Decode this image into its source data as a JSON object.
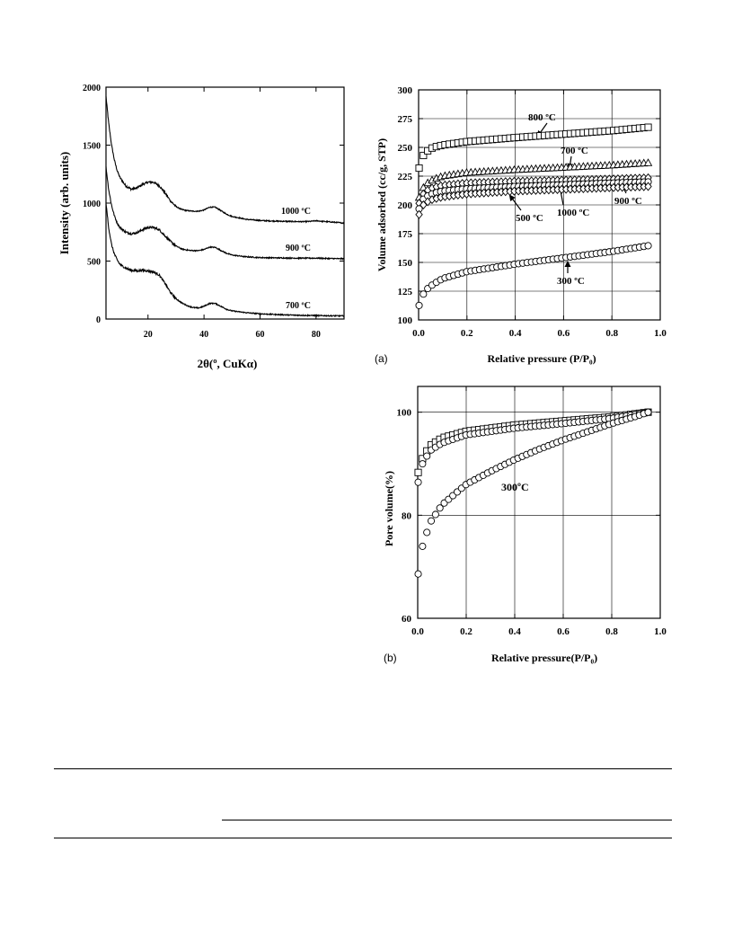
{
  "page": {
    "background": "#ffffff",
    "ink": "#000000"
  },
  "chart_data": [
    {
      "id": "xrd",
      "type": "line",
      "xlabel": "2θ(º, CuKα)",
      "ylabel": "Intensity (arb. units)",
      "xlim": [
        5,
        90
      ],
      "ylim": [
        0,
        2000
      ],
      "xticks": [
        20,
        40,
        60,
        80
      ],
      "yticks": [
        0,
        500,
        1000,
        1500,
        2000
      ],
      "grid": false,
      "legend": "none",
      "series": [
        {
          "name": "1000 ºC",
          "x": [
            5,
            6,
            7,
            8,
            9,
            10,
            12,
            14,
            16,
            18,
            20,
            22,
            24,
            26,
            28,
            30,
            32,
            34,
            36,
            38,
            40,
            42,
            44,
            46,
            48,
            50,
            55,
            60,
            65,
            70,
            75,
            78,
            80,
            82,
            85,
            88,
            90
          ],
          "y": [
            1920,
            1680,
            1500,
            1370,
            1280,
            1220,
            1150,
            1120,
            1130,
            1160,
            1180,
            1180,
            1150,
            1090,
            1020,
            970,
            945,
            935,
            930,
            930,
            940,
            965,
            965,
            935,
            905,
            885,
            860,
            850,
            845,
            842,
            840,
            842,
            848,
            843,
            838,
            832,
            828
          ]
        },
        {
          "name": "900 ºC",
          "x": [
            5,
            6,
            7,
            8,
            9,
            10,
            12,
            14,
            16,
            18,
            20,
            22,
            24,
            26,
            28,
            30,
            32,
            34,
            36,
            38,
            40,
            42,
            44,
            46,
            48,
            50,
            55,
            60,
            65,
            70,
            75,
            80,
            85,
            90
          ],
          "y": [
            1310,
            1110,
            980,
            890,
            830,
            790,
            750,
            735,
            745,
            770,
            790,
            790,
            770,
            720,
            670,
            630,
            605,
            595,
            590,
            590,
            600,
            620,
            618,
            592,
            568,
            552,
            537,
            530,
            528,
            526,
            525,
            525,
            522,
            520
          ]
        },
        {
          "name": "700 ºC",
          "x": [
            5,
            6,
            7,
            8,
            9,
            10,
            12,
            14,
            16,
            18,
            20,
            22,
            24,
            26,
            28,
            30,
            32,
            34,
            36,
            38,
            40,
            42,
            44,
            46,
            48,
            50,
            55,
            60,
            65,
            70,
            75,
            80,
            85,
            90
          ],
          "y": [
            1000,
            780,
            640,
            560,
            510,
            470,
            440,
            420,
            415,
            420,
            415,
            405,
            380,
            310,
            230,
            175,
            140,
            115,
            100,
            95,
            110,
            135,
            135,
            110,
            85,
            70,
            55,
            45,
            40,
            35,
            32,
            30,
            28,
            27
          ]
        }
      ],
      "annotations": [
        "1000 ºC",
        "900 ºC",
        "700 ºC"
      ]
    },
    {
      "id": "adsorption",
      "type": "scatter",
      "panel_label": "(a)",
      "xlabel": "Relative pressure (P/P₀)",
      "ylabel": "Volume adsorbed (cc/g, STP)",
      "xlim": [
        0,
        1.0
      ],
      "ylim": [
        100,
        300
      ],
      "xticks": [
        0.0,
        0.2,
        0.4,
        0.6,
        0.8,
        1.0
      ],
      "xtick_labels": [
        "0.0",
        "0.2",
        "0.4",
        "0.6",
        "0.8",
        "1.0"
      ],
      "yticks": [
        100,
        125,
        150,
        175,
        200,
        225,
        250,
        275,
        300
      ],
      "grid": true,
      "legend": "none",
      "series": [
        {
          "name": "800 ºC",
          "marker": "square",
          "anchors": [
            [
              0.0,
              230
            ],
            [
              0.01,
              240
            ],
            [
              0.03,
              246
            ],
            [
              0.06,
              250
            ],
            [
              0.1,
              252
            ],
            [
              0.2,
              255
            ],
            [
              0.4,
              258.5
            ],
            [
              0.6,
              261.5
            ],
            [
              0.8,
              264.5
            ],
            [
              0.95,
              267.5
            ]
          ]
        },
        {
          "name": "700 ºC",
          "marker": "triangle",
          "anchors": [
            [
              0.0,
              205
            ],
            [
              0.01,
              212
            ],
            [
              0.03,
              218
            ],
            [
              0.06,
              222
            ],
            [
              0.1,
              225
            ],
            [
              0.2,
              228
            ],
            [
              0.4,
              230.5
            ],
            [
              0.6,
              232.5
            ],
            [
              0.8,
              234.5
            ],
            [
              0.95,
              236.5
            ]
          ]
        },
        {
          "name": "900 ºC",
          "marker": "diamond",
          "anchors": [
            [
              0.0,
              200
            ],
            [
              0.01,
              207
            ],
            [
              0.03,
              212
            ],
            [
              0.06,
              215
            ],
            [
              0.1,
              217
            ],
            [
              0.2,
              219
            ],
            [
              0.4,
              220.5
            ],
            [
              0.6,
              221.5
            ],
            [
              0.8,
              222.5
            ],
            [
              0.95,
              223.5
            ]
          ]
        },
        {
          "name": "1000 ºC",
          "marker": "circle",
          "anchors": [
            [
              0.0,
              195
            ],
            [
              0.01,
              203
            ],
            [
              0.03,
              207
            ],
            [
              0.06,
              210
            ],
            [
              0.1,
              212
            ],
            [
              0.2,
              214
            ],
            [
              0.4,
              216
            ],
            [
              0.6,
              217.5
            ],
            [
              0.8,
              219
            ],
            [
              0.95,
              220
            ]
          ]
        },
        {
          "name": "500 ºC",
          "marker": "diamond",
          "anchors": [
            [
              0.0,
              190
            ],
            [
              0.01,
              198
            ],
            [
              0.03,
              202
            ],
            [
              0.06,
              205
            ],
            [
              0.1,
              207
            ],
            [
              0.2,
              209.5
            ],
            [
              0.4,
              212
            ],
            [
              0.6,
              213.5
            ],
            [
              0.8,
              215
            ],
            [
              0.95,
              216
            ]
          ]
        },
        {
          "name": "300 ºC",
          "marker": "circle",
          "anchors": [
            [
              0.0,
              111
            ],
            [
              0.01,
              119
            ],
            [
              0.03,
              126
            ],
            [
              0.06,
              131
            ],
            [
              0.1,
              136
            ],
            [
              0.2,
              142
            ],
            [
              0.4,
              148.5
            ],
            [
              0.6,
              154
            ],
            [
              0.8,
              159.5
            ],
            [
              0.95,
              164.5
            ]
          ]
        }
      ],
      "points_per_series": 54,
      "annotations": [
        "800 ºC",
        "700 ºC",
        "900 ºC",
        "500 ºC",
        "1000 ºC",
        "300 ºC"
      ]
    },
    {
      "id": "pore",
      "type": "scatter",
      "panel_label": "(b)",
      "xlabel": "Relative pressure(P/P₀)",
      "ylabel": "Pore volume(%)",
      "xlim": [
        0,
        1.0
      ],
      "ylim": [
        60,
        105
      ],
      "xticks": [
        0.0,
        0.2,
        0.4,
        0.6,
        0.8,
        1.0
      ],
      "xtick_labels": [
        "0.0",
        "0.2",
        "0.4",
        "0.6",
        "0.8",
        "1.0"
      ],
      "yticks": [
        60,
        80,
        100
      ],
      "grid": true,
      "legend": "none",
      "series": [
        {
          "name": "",
          "marker": "square",
          "anchors": [
            [
              0.0,
              88
            ],
            [
              0.02,
              91
            ],
            [
              0.05,
              93.5
            ],
            [
              0.1,
              95
            ],
            [
              0.2,
              96.3
            ],
            [
              0.4,
              97.5
            ],
            [
              0.6,
              98.3
            ],
            [
              0.8,
              99.1
            ],
            [
              0.95,
              100
            ]
          ]
        },
        {
          "name": "",
          "marker": "circle",
          "anchors": [
            [
              0.0,
              86
            ],
            [
              0.02,
              90
            ],
            [
              0.05,
              92.5
            ],
            [
              0.1,
              94
            ],
            [
              0.2,
              95.6
            ],
            [
              0.4,
              96.9
            ],
            [
              0.6,
              97.8
            ],
            [
              0.8,
              98.8
            ],
            [
              0.95,
              100
            ]
          ]
        },
        {
          "name": "300ºC",
          "marker": "circle",
          "anchors": [
            [
              0.0,
              68
            ],
            [
              0.02,
              74
            ],
            [
              0.05,
              78.5
            ],
            [
              0.1,
              82
            ],
            [
              0.2,
              86
            ],
            [
              0.3,
              88.5
            ],
            [
              0.4,
              90.8
            ],
            [
              0.5,
              92.8
            ],
            [
              0.6,
              94.6
            ],
            [
              0.7,
              96.2
            ],
            [
              0.8,
              97.8
            ],
            [
              0.9,
              99.2
            ],
            [
              0.95,
              100
            ]
          ]
        }
      ],
      "points_per_series": 54,
      "annotations": [
        "300ºC"
      ]
    }
  ]
}
